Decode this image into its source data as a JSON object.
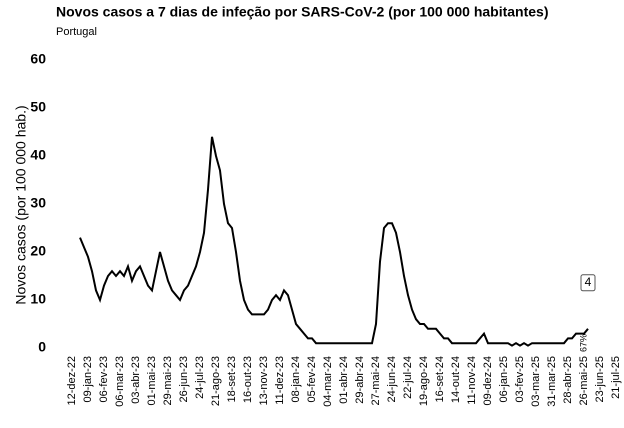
{
  "chart_data": {
    "type": "line",
    "title": "Novos casos a 7 dias de infeção por SARS-CoV-2 (por 100 000 habitantes)",
    "subtitle": "Portugal",
    "y_label": "Novos casos (por 100 000 hab.)",
    "categories": [
      "12-dez-22",
      null,
      null,
      null,
      "09-jan-23",
      null,
      null,
      null,
      "06-fev-23",
      null,
      null,
      null,
      "06-mar-23",
      null,
      null,
      null,
      "03-abr-23",
      null,
      null,
      null,
      "01-mai-23",
      null,
      null,
      null,
      "29-mai-23",
      null,
      null,
      null,
      "26-jun-23",
      null,
      null,
      null,
      "24-jul-23",
      null,
      null,
      null,
      "21-ago-23",
      null,
      null,
      null,
      "18-set-23",
      null,
      null,
      null,
      "16-out-23",
      null,
      null,
      null,
      "13-nov-23",
      null,
      null,
      null,
      "11-dez-23",
      null,
      null,
      null,
      "08-jan-24",
      null,
      null,
      null,
      "05-fev-24",
      null,
      null,
      null,
      "04-mar-24",
      null,
      null,
      null,
      "01-abr-24",
      null,
      null,
      null,
      "29-abr-24",
      null,
      null,
      null,
      "27-mai-24",
      null,
      null,
      null,
      "24-jun-24",
      null,
      null,
      null,
      "22-jul-24",
      null,
      null,
      null,
      "19-ago-24",
      null,
      null,
      null,
      "16-set-24",
      null,
      null,
      null,
      "14-out-24",
      null,
      null,
      null,
      "11-nov-24",
      null,
      null,
      null,
      "09-dez-24",
      null,
      null,
      null,
      "06-jan-25",
      null,
      null,
      null,
      "03-fev-25",
      null,
      null,
      null,
      "03-mar-25",
      null,
      null,
      null,
      "31-mar-25",
      null,
      null,
      null,
      "28-abr-25",
      null,
      null,
      null,
      "26-mai-25",
      null,
      null,
      null,
      "23-jun-25",
      null,
      null,
      null,
      "21-jul-25"
    ],
    "values": [
      null,
      null,
      null,
      23,
      21,
      19,
      16,
      12,
      10,
      13,
      15,
      16,
      15,
      16,
      15,
      17,
      14,
      16,
      17,
      15,
      13,
      12,
      16,
      20,
      17,
      14,
      12,
      11,
      10,
      12,
      13,
      15,
      17,
      20,
      24,
      33,
      44,
      40,
      37,
      30,
      26,
      25,
      20,
      14,
      10,
      8,
      7,
      7,
      7,
      7,
      8,
      10,
      11,
      10,
      12,
      11,
      8,
      5,
      4,
      3,
      2,
      2,
      1,
      1,
      1,
      1,
      1,
      1,
      1,
      1,
      1,
      1,
      1,
      1,
      1,
      1,
      1,
      5,
      18,
      25,
      26,
      26,
      24,
      20,
      15,
      11,
      8,
      6,
      5,
      5,
      4,
      4,
      4,
      3,
      2,
      2,
      1,
      1,
      1,
      1,
      1,
      1,
      1,
      2,
      3,
      1,
      1,
      1,
      1,
      1,
      1,
      0.5,
      1,
      0.5,
      1,
      0.5,
      1,
      1,
      1,
      1,
      1,
      1,
      1,
      1,
      1,
      2,
      2,
      3,
      3,
      3,
      4,
      null,
      null,
      null,
      null,
      null,
      null
    ],
    "color": "#000000",
    "annotation": "67%",
    "ylim": [
      0,
      60
    ],
    "yticks": [
      0,
      10,
      20,
      30,
      40,
      50,
      60
    ],
    "grid": false
  }
}
